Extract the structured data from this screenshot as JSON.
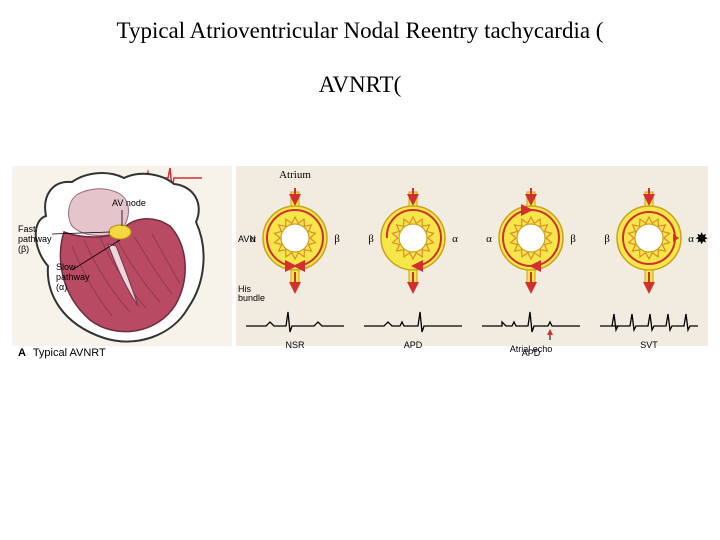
{
  "title": {
    "line1": "Typical Atrioventricular Nodal Reentry tachycardia (",
    "line2": "AVNRT("
  },
  "heart": {
    "caption_letter": "A",
    "caption_text": "Typical AVNRT",
    "labels": {
      "av_node": "AV node",
      "fast_pathway": "Fast pathway (β)",
      "slow_pathway": "Slow pathway (α)"
    },
    "colors": {
      "outline": "#000000",
      "ventricle_fill": "#b84a63",
      "atrium_fill": "#e6c4cc",
      "avnode_fill": "#f5d742",
      "ecg": "#d42f2f"
    }
  },
  "avn_diagrams": {
    "common": {
      "atrium_label": "Atrium",
      "avn_label": "AVN",
      "his_label": "His bundle",
      "alpha": "α",
      "beta": "β",
      "ring_fill": "#f5e64a",
      "ring_stroke": "#c9a21a",
      "cog_stroke": "#e08a2a",
      "arrow_stroke": "#d42f2f",
      "arrow_fill": "#d42f2f",
      "bg_shade": "#f2ece0"
    },
    "panels": [
      {
        "bottom_label": "NSR",
        "atrial_echo": false,
        "echo_label": ""
      },
      {
        "bottom_label": "APD",
        "atrial_echo": false,
        "echo_label": ""
      },
      {
        "bottom_label": "APD",
        "atrial_echo": true,
        "echo_label": "Atrial echo"
      },
      {
        "bottom_label": "SVT",
        "atrial_echo": false,
        "echo_label": ""
      }
    ]
  }
}
